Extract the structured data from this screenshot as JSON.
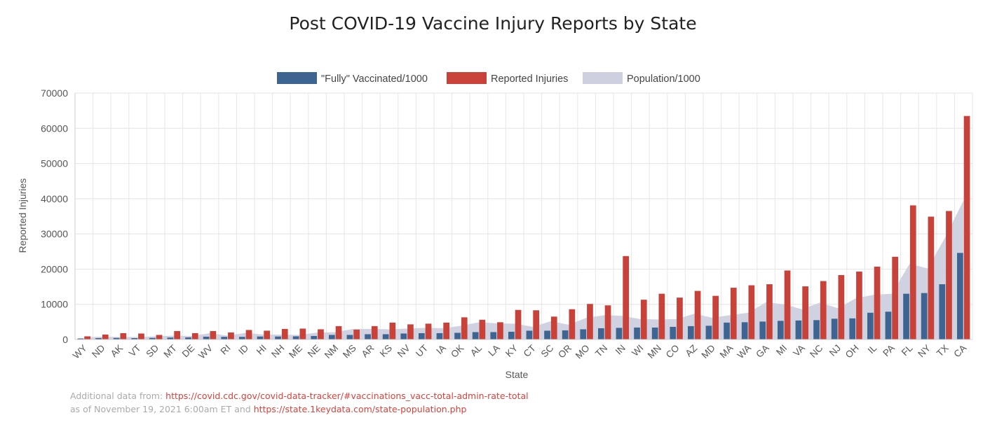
{
  "chart_data": {
    "type": "bar",
    "title": "Post COVID-19 Vaccine Injury Reports by State",
    "xlabel": "State",
    "ylabel": "Reported Injuries",
    "ylim": [
      0,
      70000
    ],
    "yticks": [
      0,
      10000,
      20000,
      30000,
      40000,
      50000,
      60000,
      70000
    ],
    "grid": true,
    "legend_position": "top",
    "categories": [
      "WY",
      "ND",
      "AK",
      "VT",
      "SD",
      "MT",
      "DE",
      "WV",
      "RI",
      "ID",
      "HI",
      "NH",
      "ME",
      "NE",
      "NM",
      "MS",
      "AR",
      "KS",
      "NV",
      "UT",
      "IA",
      "OK",
      "AL",
      "LA",
      "KY",
      "CT",
      "SC",
      "OR",
      "MO",
      "TN",
      "IN",
      "WI",
      "MN",
      "CO",
      "AZ",
      "MD",
      "MA",
      "WA",
      "GA",
      "MI",
      "VA",
      "NC",
      "NJ",
      "OH",
      "IL",
      "PA",
      "FL",
      "NY",
      "TX",
      "CA"
    ],
    "series": [
      {
        "name": "\"Fully\" Vaccinated/1000",
        "kind": "bar",
        "color": "#3e6592",
        "values": [
          300,
          400,
          450,
          400,
          450,
          550,
          600,
          800,
          750,
          750,
          850,
          850,
          900,
          1000,
          1300,
          1300,
          1500,
          1500,
          1700,
          1800,
          1800,
          1900,
          2100,
          2100,
          2200,
          2500,
          2500,
          2600,
          2900,
          3200,
          3300,
          3400,
          3400,
          3600,
          3800,
          3900,
          4800,
          4900,
          5100,
          5300,
          5400,
          5500,
          5900,
          6000,
          7600,
          7900,
          13000,
          13200,
          15700,
          24600
        ]
      },
      {
        "name": "Reported Injuries",
        "kind": "bar",
        "color": "#c8423a",
        "values": [
          900,
          1400,
          1800,
          1700,
          1300,
          2400,
          1800,
          2400,
          2000,
          2700,
          2500,
          3000,
          3100,
          2900,
          3800,
          2800,
          3800,
          4800,
          4300,
          4500,
          4800,
          6300,
          5600,
          4900,
          8400,
          8300,
          6500,
          8600,
          10100,
          9700,
          23700,
          11300,
          13000,
          11900,
          13800,
          12400,
          14700,
          15400,
          15700,
          19600,
          15100,
          16600,
          18300,
          19300,
          20700,
          23500,
          38100,
          34900,
          36500,
          63500
        ]
      },
      {
        "name": "Population/1000",
        "kind": "area",
        "color": "#cfd0df",
        "values": [
          600,
          800,
          700,
          700,
          900,
          1100,
          1000,
          1800,
          1100,
          1900,
          1400,
          1400,
          1300,
          2000,
          2100,
          3000,
          3000,
          2900,
          3100,
          3300,
          3200,
          3900,
          4900,
          4600,
          4500,
          3600,
          5200,
          4200,
          6200,
          6900,
          6700,
          5800,
          5700,
          5800,
          7300,
          6200,
          6900,
          7600,
          10600,
          10000,
          8600,
          10500,
          8900,
          11700,
          12700,
          13000,
          21500,
          20200,
          29200,
          39500
        ]
      }
    ],
    "source_note": {
      "prefix": "Additional data from: ",
      "link1": "https://covid.cdc.gov/covid-data-tracker/#vaccinations_vacc-total-admin-rate-total",
      "middle": "as of November 19, 2021 6:00am ET and ",
      "link2": "https://state.1keydata.com/state-population.php"
    }
  }
}
